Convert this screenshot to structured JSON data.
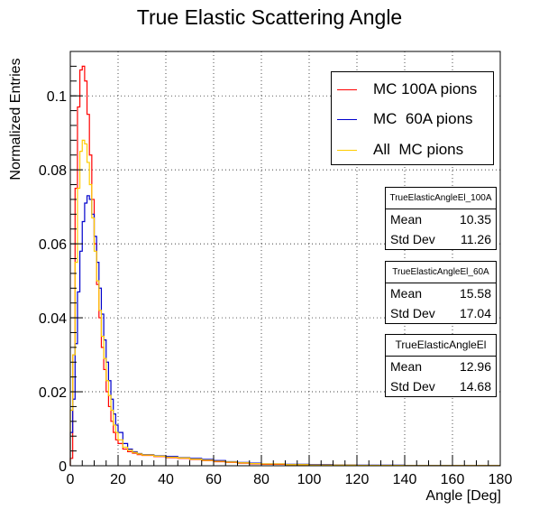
{
  "chart_data": {
    "type": "line",
    "title": "True Elastic Scattering Angle",
    "xlabel": "Angle [Deg]",
    "ylabel": "Normalized Entries",
    "xlim": [
      0,
      180
    ],
    "ylim": [
      0,
      0.112
    ],
    "x_ticks": [
      "0",
      "20",
      "40",
      "60",
      "80",
      "100",
      "120",
      "140",
      "160",
      "180"
    ],
    "y_ticks": [
      "0",
      "0.02",
      "0.04",
      "0.06",
      "0.08",
      "0.1"
    ],
    "grid": true,
    "legend_position": "top-right",
    "series": [
      {
        "name": "MC 100A pions",
        "color": "#ff0000",
        "x": [
          0,
          1,
          2,
          3,
          4,
          5,
          6,
          7,
          8,
          9,
          10,
          11,
          12,
          13,
          14,
          15,
          16,
          17,
          18,
          19,
          20,
          22,
          24,
          26,
          28,
          30,
          35,
          40,
          45,
          50,
          55,
          60,
          65,
          70,
          75,
          80,
          90,
          100,
          110,
          120,
          140,
          160,
          180
        ],
        "values": [
          0.002,
          0.03,
          0.075,
          0.097,
          0.107,
          0.108,
          0.104,
          0.095,
          0.084,
          0.072,
          0.06,
          0.049,
          0.04,
          0.032,
          0.026,
          0.02,
          0.016,
          0.012,
          0.009,
          0.007,
          0.006,
          0.0045,
          0.0038,
          0.0034,
          0.003,
          0.0028,
          0.0025,
          0.0022,
          0.002,
          0.0017,
          0.0014,
          0.0011,
          0.0009,
          0.0007,
          0.0005,
          0.0004,
          0.0003,
          0.0002,
          0.00015,
          0.0001,
          8e-05,
          6e-05,
          0.0
        ]
      },
      {
        "name": "MC  60A pions",
        "color": "#0000cc",
        "x": [
          0,
          1,
          2,
          3,
          4,
          5,
          6,
          7,
          8,
          9,
          10,
          11,
          12,
          13,
          14,
          15,
          16,
          17,
          18,
          19,
          20,
          22,
          24,
          26,
          28,
          30,
          35,
          40,
          45,
          50,
          55,
          60,
          65,
          70,
          75,
          80,
          90,
          100,
          110,
          120,
          140,
          160,
          180
        ],
        "values": [
          0.009,
          0.018,
          0.033,
          0.047,
          0.058,
          0.066,
          0.071,
          0.073,
          0.072,
          0.068,
          0.062,
          0.055,
          0.048,
          0.041,
          0.034,
          0.028,
          0.023,
          0.018,
          0.014,
          0.011,
          0.009,
          0.006,
          0.0045,
          0.0038,
          0.0033,
          0.003,
          0.0027,
          0.0025,
          0.0022,
          0.002,
          0.0017,
          0.0014,
          0.0011,
          0.0009,
          0.0007,
          0.0005,
          0.0004,
          0.0003,
          0.0002,
          0.00015,
          0.0001,
          8e-05,
          0.0
        ]
      },
      {
        "name": "All  MC pions",
        "color": "#ffcc00",
        "x": [
          0,
          1,
          2,
          3,
          4,
          5,
          6,
          7,
          8,
          9,
          10,
          11,
          12,
          13,
          14,
          15,
          16,
          17,
          18,
          19,
          20,
          22,
          24,
          26,
          28,
          30,
          35,
          40,
          45,
          50,
          55,
          60,
          65,
          70,
          75,
          80,
          90,
          100,
          110,
          120,
          140,
          160,
          180
        ],
        "values": [
          0.015,
          0.03,
          0.055,
          0.075,
          0.085,
          0.088,
          0.087,
          0.082,
          0.076,
          0.067,
          0.058,
          0.05,
          0.042,
          0.035,
          0.029,
          0.023,
          0.019,
          0.015,
          0.011,
          0.009,
          0.007,
          0.005,
          0.0042,
          0.0036,
          0.0032,
          0.0029,
          0.0026,
          0.0023,
          0.0021,
          0.0018,
          0.0015,
          0.0012,
          0.001,
          0.0008,
          0.0006,
          0.0005,
          0.0003,
          0.0002,
          0.00015,
          0.0001,
          8e-05,
          6e-05,
          0.0
        ]
      }
    ]
  },
  "stats": [
    {
      "title": "TrueElasticAngleEl_100A",
      "mean_label": "Mean",
      "mean": "10.35",
      "std_label": "Std Dev",
      "std": "11.26"
    },
    {
      "title": "TrueElasticAngleEl_60A",
      "mean_label": "Mean",
      "mean": "15.58",
      "std_label": "Std Dev",
      "std": "17.04"
    },
    {
      "title": "TrueElasticAngleEl",
      "mean_label": "Mean",
      "mean": "12.96",
      "std_label": "Std Dev",
      "std": "14.68"
    }
  ]
}
